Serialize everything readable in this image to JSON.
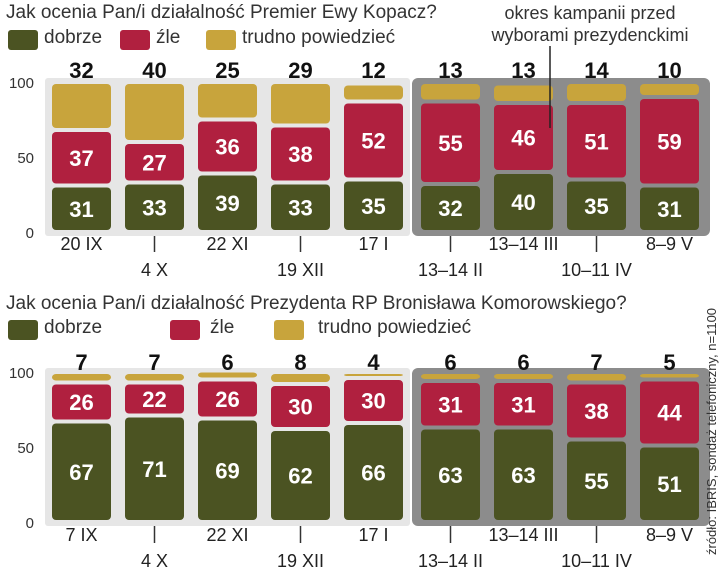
{
  "colors": {
    "good": "#4b5322",
    "bad": "#b0203f",
    "hard": "#c8a43c",
    "campaign_bg": "#8c8c8c",
    "column_bg": "#e6e6e6"
  },
  "campaign_note": {
    "line1": "okres kampanii przed",
    "line2": "wyborami prezydenckimi"
  },
  "source_note": "źródło: IBRIS, sondaż telefoniczny, n=1100",
  "chart_data": [
    {
      "type": "bar",
      "stacked": true,
      "title": "Jak ocenia Pan/i działalność Premier Ewy Kopacz?",
      "legend": [
        "dobrze",
        "źle",
        "trudno powiedzieć"
      ],
      "categories": [
        "20 IX",
        "4 X",
        "22 XI",
        "19 XII",
        "17 I",
        "13–14 II",
        "13–14 III",
        "10–11 IV",
        "8–9 V"
      ],
      "yticks": [
        "100",
        "50",
        "0"
      ],
      "ylim": [
        0,
        100
      ],
      "campaign_from_index": 5,
      "series": [
        {
          "name": "dobrze",
          "values": [
            31,
            33,
            39,
            33,
            35,
            32,
            40,
            35,
            31
          ]
        },
        {
          "name": "źle",
          "values": [
            37,
            27,
            36,
            38,
            52,
            55,
            46,
            51,
            59
          ]
        },
        {
          "name": "trudno powiedzieć",
          "values": [
            32,
            40,
            25,
            29,
            12,
            13,
            13,
            14,
            10
          ]
        }
      ]
    },
    {
      "type": "bar",
      "stacked": true,
      "title": "Jak ocenia Pan/i działalność Prezydenta RP Bronisława Komorowskiego?",
      "legend": [
        "dobrze",
        "źle",
        "trudno powiedzieć"
      ],
      "categories": [
        "7 IX",
        "4 X",
        "22 XI",
        "19 XII",
        "17 I",
        "13–14 II",
        "13–14 III",
        "10–11 IV",
        "8–9 V"
      ],
      "yticks": [
        "100",
        "50",
        "0"
      ],
      "ylim": [
        0,
        100
      ],
      "campaign_from_index": 5,
      "series": [
        {
          "name": "dobrze",
          "values": [
            67,
            71,
            69,
            62,
            66,
            63,
            63,
            55,
            51
          ]
        },
        {
          "name": "źle",
          "values": [
            26,
            22,
            26,
            30,
            30,
            31,
            31,
            38,
            44
          ]
        },
        {
          "name": "trudno powiedzieć",
          "values": [
            7,
            7,
            6,
            8,
            4,
            6,
            6,
            7,
            5
          ]
        }
      ]
    }
  ]
}
